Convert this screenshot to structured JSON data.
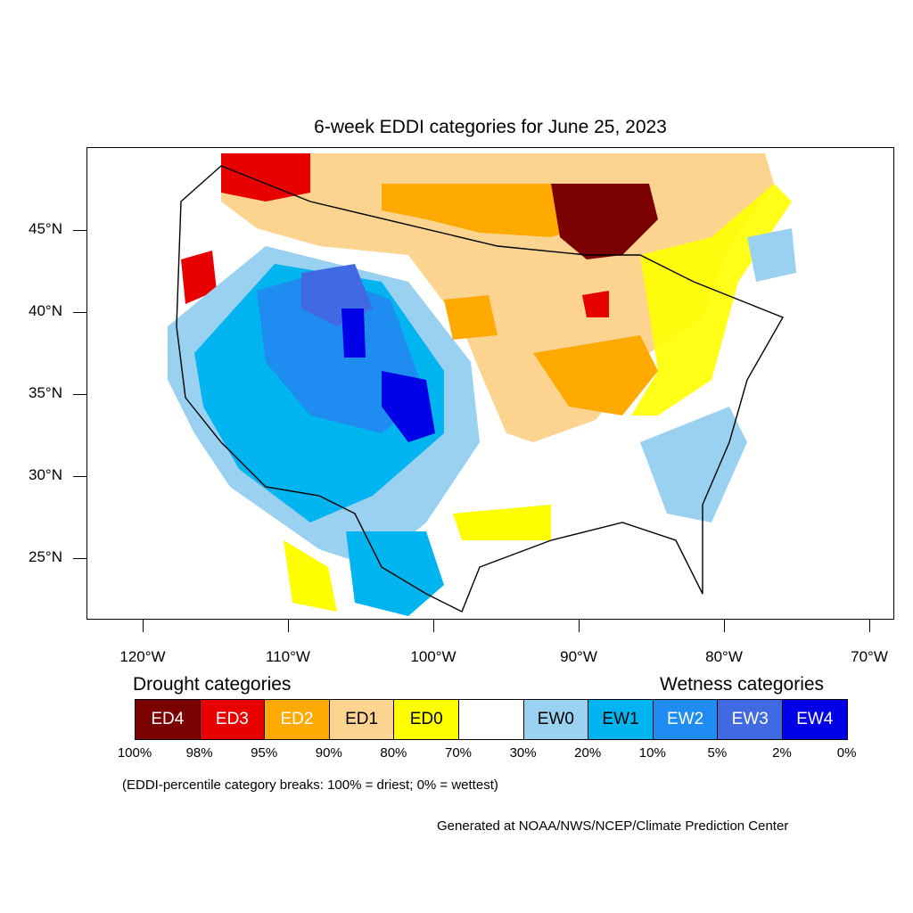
{
  "title": "6-week EDDI categories for June 25, 2023",
  "y_axis": {
    "ticks": [
      {
        "lat": 45,
        "label": "45°N"
      },
      {
        "lat": 40,
        "label": "40°N"
      },
      {
        "lat": 35,
        "label": "35°N"
      },
      {
        "lat": 30,
        "label": "30°N"
      },
      {
        "lat": 25,
        "label": "25°N"
      }
    ]
  },
  "x_axis": {
    "ticks": [
      {
        "lon": -120,
        "label": "120°W"
      },
      {
        "lon": -110,
        "label": "110°W"
      },
      {
        "lon": -100,
        "label": "100°W"
      },
      {
        "lon": -90,
        "label": "90°W"
      },
      {
        "lon": -80,
        "label": "80°W"
      },
      {
        "lon": -70,
        "label": "70°W"
      }
    ]
  },
  "legend": {
    "drought_heading": "Drought categories",
    "wetness_heading": "Wetness categories",
    "categories": [
      {
        "label": "ED4",
        "color": "#7b0000",
        "text_color": "#ffffff"
      },
      {
        "label": "ED3",
        "color": "#e60000",
        "text_color": "#ffffff"
      },
      {
        "label": "ED2",
        "color": "#ffaa00",
        "text_color": "#ffffff"
      },
      {
        "label": "ED1",
        "color": "#fcd38f",
        "text_color": "#000000"
      },
      {
        "label": "ED0",
        "color": "#ffff00",
        "text_color": "#000000"
      },
      {
        "label": "",
        "color": "#ffffff",
        "text_color": "#000000"
      },
      {
        "label": "EW0",
        "color": "#9ad0f0",
        "text_color": "#000000"
      },
      {
        "label": "EW1",
        "color": "#00b4f0",
        "text_color": "#000000"
      },
      {
        "label": "EW2",
        "color": "#1e8cf0",
        "text_color": "#ffffff"
      },
      {
        "label": "EW3",
        "color": "#4169e1",
        "text_color": "#ffffff"
      },
      {
        "label": "EW4",
        "color": "#0000e6",
        "text_color": "#ffffff"
      }
    ],
    "breaks": [
      "100%",
      "98%",
      "95%",
      "90%",
      "80%",
      "70%",
      "30%",
      "20%",
      "10%",
      "5%",
      "2%",
      "0%"
    ],
    "note": "(EDDI-percentile category breaks: 100% = driest; 0% = wettest)"
  },
  "credit": "Generated at NOAA/NWS/NCEP/Climate Prediction Center"
}
